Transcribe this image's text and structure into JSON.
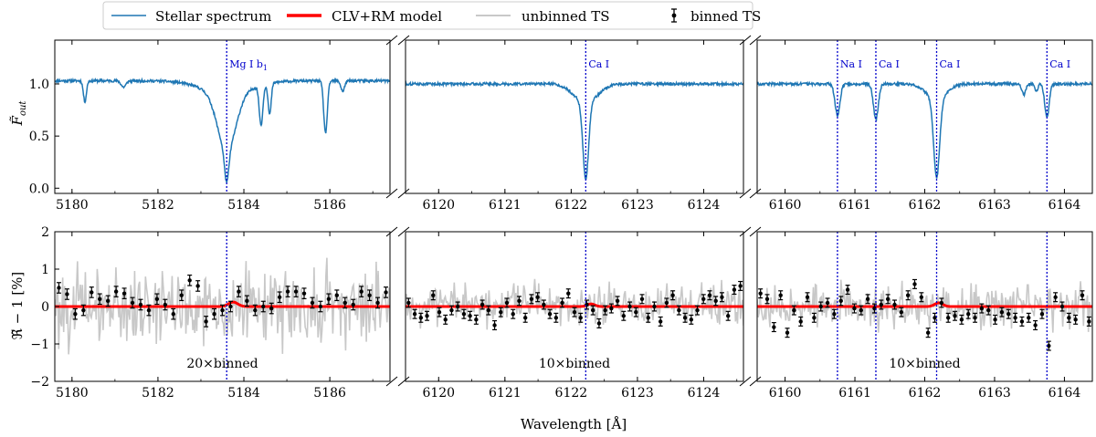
{
  "legend": {
    "stellar": "Stellar spectrum",
    "model": "CLV+RM model",
    "unbinned": "unbinned TS",
    "binned": "binned TS"
  },
  "colors": {
    "stellar": "#1f77b4",
    "model": "#ff0000",
    "unbinned": "#c8c8c8",
    "binned": "#000000",
    "line_marker": "#0000cc"
  },
  "chart_data": {
    "type": "line",
    "xlabel": "Wavelength [Å]",
    "top": {
      "ylabel": "F̃",
      "ylabel_sub": "out",
      "ylim": [
        -0.05,
        1.42
      ],
      "yticks": [
        "0.0",
        "0.5",
        "1.0"
      ],
      "ytick_values": [
        0.0,
        0.5,
        1.0
      ]
    },
    "bottom": {
      "ylabel": "ℜ̃ − 1 [%]",
      "ylim": [
        -2,
        2
      ],
      "yticks": [
        "−2",
        "−1",
        "0",
        "1",
        "2"
      ],
      "ytick_values": [
        -2,
        -1,
        0,
        1,
        2
      ]
    },
    "segments": [
      {
        "xlim": [
          5179.6,
          5187.4
        ],
        "xticks": [
          5180,
          5182,
          5184,
          5186
        ],
        "xtick_labels": [
          "5180",
          "5182",
          "5184",
          "5186"
        ],
        "lines": [
          {
            "x": 5183.6,
            "label": "Mg I b",
            "sub": "1"
          }
        ],
        "bin_label": "20×binned",
        "spectrum": {
          "continuum": 1.03,
          "lines": [
            [
              5180.3,
              0.2,
              0.05
            ],
            [
              5181.2,
              0.06,
              0.08
            ],
            [
              5183.6,
              0.55,
              0.3
            ],
            [
              5183.6,
              0.3,
              0.07
            ],
            [
              5183.6,
              0.12,
              0.8
            ],
            [
              5184.4,
              0.38,
              0.06
            ],
            [
              5184.6,
              0.3,
              0.05
            ],
            [
              5185.9,
              0.5,
              0.06
            ],
            [
              5186.3,
              0.1,
              0.06
            ]
          ]
        },
        "model": {
          "bumps": [
            [
              5183.75,
              0.12,
              0.15
            ]
          ]
        },
        "binned": [
          0.5,
          0.33,
          -0.2,
          -0.1,
          0.38,
          0.2,
          0.15,
          0.4,
          0.35,
          0.1,
          0.05,
          -0.1,
          0.2,
          0.05,
          -0.2,
          0.3,
          0.7,
          0.55,
          -0.4,
          -0.2,
          -0.1,
          0.0,
          0.4,
          0.15,
          -0.1,
          0.0,
          -0.05,
          0.25,
          0.4,
          0.4,
          0.35,
          0.1,
          0.0,
          0.2,
          0.3,
          0.1,
          0.05,
          0.4,
          0.3,
          0.1,
          0.38
        ]
      },
      {
        "xlim": [
          6119.5,
          6124.6
        ],
        "xticks": [
          6120,
          6121,
          6122,
          6123,
          6124
        ],
        "xtick_labels": [
          "6120",
          "6121",
          "6122",
          "6123",
          "6124"
        ],
        "lines": [
          {
            "x": 6122.22,
            "label": "Ca I",
            "sub": ""
          }
        ],
        "bin_label": "10×binned",
        "spectrum": {
          "continuum": 1.0,
          "lines": [
            [
              6122.22,
              0.73,
              0.06
            ],
            [
              6122.22,
              0.18,
              0.25
            ]
          ]
        },
        "model": {
          "bumps": [
            [
              6122.3,
              0.07,
              0.08
            ]
          ]
        },
        "binned": [
          0.1,
          -0.2,
          -0.3,
          -0.25,
          0.3,
          -0.15,
          -0.35,
          -0.1,
          0.0,
          -0.2,
          -0.25,
          -0.35,
          0.05,
          -0.1,
          -0.5,
          -0.15,
          0.1,
          -0.2,
          0.15,
          -0.3,
          0.2,
          0.25,
          0.05,
          -0.2,
          -0.3,
          0.1,
          0.35,
          -0.15,
          -0.3,
          0.05,
          -0.1,
          -0.45,
          -0.1,
          -0.05,
          0.15,
          -0.25,
          0.0,
          -0.15,
          0.2,
          -0.3,
          0.0,
          -0.4,
          0.1,
          0.3,
          -0.1,
          -0.3,
          -0.35,
          -0.1,
          0.2,
          0.3,
          0.15,
          0.25,
          -0.25,
          0.45,
          0.55
        ]
      },
      {
        "xlim": [
          6159.6,
          6164.4
        ],
        "xticks": [
          6160,
          6161,
          6162,
          6163,
          6164
        ],
        "xtick_labels": [
          "6160",
          "6161",
          "6162",
          "6163",
          "6164"
        ],
        "lines": [
          {
            "x": 6160.75,
            "label": "Na I",
            "sub": ""
          },
          {
            "x": 6161.3,
            "label": "Ca I",
            "sub": ""
          },
          {
            "x": 6162.17,
            "label": "Ca I",
            "sub": ""
          },
          {
            "x": 6163.75,
            "label": "Ca I",
            "sub": ""
          }
        ],
        "bin_label": "10×binned",
        "spectrum": {
          "continuum": 1.0,
          "lines": [
            [
              6160.75,
              0.3,
              0.05
            ],
            [
              6161.3,
              0.34,
              0.05
            ],
            [
              6162.17,
              0.75,
              0.06
            ],
            [
              6162.17,
              0.15,
              0.2
            ],
            [
              6163.42,
              0.1,
              0.04
            ],
            [
              6163.6,
              0.07,
              0.03
            ],
            [
              6163.75,
              0.32,
              0.045
            ]
          ]
        },
        "model": {
          "bumps": [
            [
              6162.2,
              0.1,
              0.08
            ]
          ]
        },
        "binned": [
          0.35,
          0.2,
          -0.55,
          0.3,
          -0.7,
          -0.1,
          -0.4,
          0.25,
          -0.3,
          0.0,
          0.1,
          -0.2,
          0.15,
          0.45,
          -0.05,
          -0.1,
          0.2,
          -0.05,
          0.05,
          0.2,
          0.05,
          -0.15,
          0.3,
          0.6,
          0.25,
          -0.7,
          -0.3,
          0.1,
          -0.3,
          -0.25,
          -0.35,
          -0.2,
          -0.3,
          -0.05,
          -0.1,
          -0.35,
          -0.15,
          -0.2,
          -0.3,
          -0.4,
          -0.3,
          -0.5,
          -0.2,
          -1.05,
          0.25,
          0.0,
          -0.3,
          -0.35,
          0.3,
          -0.4
        ]
      }
    ]
  }
}
